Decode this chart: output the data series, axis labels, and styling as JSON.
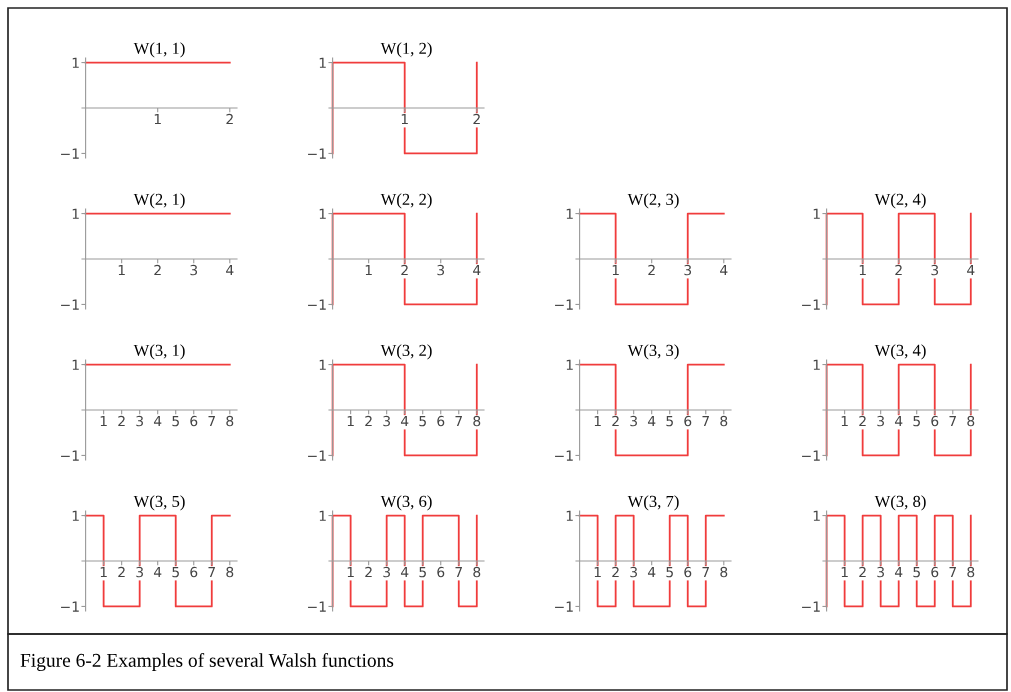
{
  "chart_data": [
    {
      "type": "line",
      "title": "W(1, 1)",
      "x": [
        0,
        2
      ],
      "values": [
        1,
        1
      ],
      "color": "#f03c3c",
      "xlim": [
        -0.05,
        2.1
      ],
      "xticks": [
        1,
        2
      ],
      "ylim": [
        -1.1,
        1.1
      ],
      "yticks": [
        -1,
        1
      ],
      "annotations": [
        "Figure 6-2 Examples of several Walsh functions"
      ]
    },
    {
      "type": "line",
      "title": "W(1, 2)",
      "x": [
        0,
        0,
        1,
        1,
        2,
        2
      ],
      "values": [
        -1,
        1,
        1,
        -1,
        -1,
        1
      ],
      "color": "#f03c3c",
      "xlim": [
        -0.05,
        2.1
      ],
      "xticks": [
        1,
        2
      ],
      "ylim": [
        -1.1,
        1.1
      ],
      "yticks": [
        -1,
        1
      ]
    },
    {
      "type": "line",
      "title": "W(2, 1)",
      "x": [
        0,
        4
      ],
      "values": [
        1,
        1
      ],
      "color": "#f03c3c",
      "xlim": [
        -0.1,
        4.2
      ],
      "xticks": [
        1,
        2,
        3,
        4
      ],
      "ylim": [
        -1.1,
        1.1
      ],
      "yticks": [
        -1,
        1
      ]
    },
    {
      "type": "line",
      "title": "W(2, 2)",
      "x": [
        0,
        0,
        2,
        2,
        4,
        4
      ],
      "values": [
        -1,
        1,
        1,
        -1,
        -1,
        1
      ],
      "color": "#f03c3c",
      "xlim": [
        -0.1,
        4.2
      ],
      "xticks": [
        1,
        2,
        3,
        4
      ],
      "ylim": [
        -1.1,
        1.1
      ],
      "yticks": [
        -1,
        1
      ]
    },
    {
      "type": "line",
      "title": "W(2, 3)",
      "x": [
        0,
        1,
        1,
        3,
        3,
        4
      ],
      "values": [
        1,
        1,
        -1,
        -1,
        1,
        1
      ],
      "color": "#f03c3c",
      "xlim": [
        -0.1,
        4.2
      ],
      "xticks": [
        1,
        2,
        3,
        4
      ],
      "ylim": [
        -1.1,
        1.1
      ],
      "yticks": [
        -1,
        1
      ]
    },
    {
      "type": "line",
      "title": "W(2, 4)",
      "x": [
        0,
        0,
        1,
        1,
        2,
        2,
        3,
        3,
        4,
        4
      ],
      "values": [
        -1,
        1,
        1,
        -1,
        -1,
        1,
        1,
        -1,
        -1,
        1
      ],
      "color": "#f03c3c",
      "xlim": [
        -0.1,
        4.2
      ],
      "xticks": [
        1,
        2,
        3,
        4
      ],
      "ylim": [
        -1.1,
        1.1
      ],
      "yticks": [
        -1,
        1
      ]
    },
    {
      "type": "line",
      "title": "W(3, 1)",
      "x": [
        0,
        8
      ],
      "values": [
        1,
        1
      ],
      "color": "#f03c3c",
      "xlim": [
        -0.2,
        8.4
      ],
      "xticks": [
        1,
        2,
        3,
        4,
        5,
        6,
        7,
        8
      ],
      "ylim": [
        -1.1,
        1.1
      ],
      "yticks": [
        -1,
        1
      ]
    },
    {
      "type": "line",
      "title": "W(3, 2)",
      "x": [
        0,
        0,
        4,
        4,
        8,
        8
      ],
      "values": [
        -1,
        1,
        1,
        -1,
        -1,
        1
      ],
      "color": "#f03c3c",
      "xlim": [
        -0.2,
        8.4
      ],
      "xticks": [
        1,
        2,
        3,
        4,
        5,
        6,
        7,
        8
      ],
      "ylim": [
        -1.1,
        1.1
      ],
      "yticks": [
        -1,
        1
      ]
    },
    {
      "type": "line",
      "title": "W(3, 3)",
      "x": [
        0,
        2,
        2,
        6,
        6,
        8
      ],
      "values": [
        1,
        1,
        -1,
        -1,
        1,
        1
      ],
      "color": "#f03c3c",
      "xlim": [
        -0.2,
        8.4
      ],
      "xticks": [
        1,
        2,
        3,
        4,
        5,
        6,
        7,
        8
      ],
      "ylim": [
        -1.1,
        1.1
      ],
      "yticks": [
        -1,
        1
      ]
    },
    {
      "type": "line",
      "title": "W(3, 4)",
      "x": [
        0,
        0,
        2,
        2,
        4,
        4,
        6,
        6,
        8,
        8
      ],
      "values": [
        -1,
        1,
        1,
        -1,
        -1,
        1,
        1,
        -1,
        -1,
        1
      ],
      "color": "#f03c3c",
      "xlim": [
        -0.2,
        8.4
      ],
      "xticks": [
        1,
        2,
        3,
        4,
        5,
        6,
        7,
        8
      ],
      "ylim": [
        -1.1,
        1.1
      ],
      "yticks": [
        -1,
        1
      ]
    },
    {
      "type": "line",
      "title": "W(3, 5)",
      "x": [
        0,
        1,
        1,
        3,
        3,
        5,
        5,
        7,
        7,
        8
      ],
      "values": [
        1,
        1,
        -1,
        -1,
        1,
        1,
        -1,
        -1,
        1,
        1
      ],
      "color": "#f03c3c",
      "xlim": [
        -0.2,
        8.4
      ],
      "xticks": [
        1,
        2,
        3,
        4,
        5,
        6,
        7,
        8
      ],
      "ylim": [
        -1.1,
        1.1
      ],
      "yticks": [
        -1,
        1
      ]
    },
    {
      "type": "line",
      "title": "W(3, 6)",
      "x": [
        0,
        0,
        1,
        1,
        3,
        3,
        4,
        4,
        5,
        5,
        7,
        7,
        8,
        8
      ],
      "values": [
        -1,
        1,
        1,
        -1,
        -1,
        1,
        1,
        -1,
        -1,
        1,
        1,
        -1,
        -1,
        1
      ],
      "color": "#f03c3c",
      "xlim": [
        -0.2,
        8.4
      ],
      "xticks": [
        1,
        2,
        3,
        4,
        5,
        6,
        7,
        8
      ],
      "ylim": [
        -1.1,
        1.1
      ],
      "yticks": [
        -1,
        1
      ]
    },
    {
      "type": "line",
      "title": "W(3, 7)",
      "x": [
        0,
        1,
        1,
        2,
        2,
        3,
        3,
        5,
        5,
        6,
        6,
        7,
        7,
        8
      ],
      "values": [
        1,
        1,
        -1,
        -1,
        1,
        1,
        -1,
        -1,
        1,
        1,
        -1,
        -1,
        1,
        1
      ],
      "color": "#f03c3c",
      "xlim": [
        -0.2,
        8.4
      ],
      "xticks": [
        1,
        2,
        3,
        4,
        5,
        6,
        7,
        8
      ],
      "ylim": [
        -1.1,
        1.1
      ],
      "yticks": [
        -1,
        1
      ]
    },
    {
      "type": "line",
      "title": "W(3, 8)",
      "x": [
        0,
        0,
        1,
        1,
        2,
        2,
        3,
        3,
        4,
        4,
        5,
        5,
        6,
        6,
        7,
        7,
        8,
        8
      ],
      "values": [
        -1,
        1,
        1,
        -1,
        -1,
        1,
        1,
        -1,
        -1,
        1,
        1,
        -1,
        -1,
        1,
        1,
        -1,
        -1,
        1
      ],
      "color": "#f03c3c",
      "xlim": [
        -0.2,
        8.4
      ],
      "xticks": [
        1,
        2,
        3,
        4,
        5,
        6,
        7,
        8
      ],
      "ylim": [
        -1.1,
        1.1
      ],
      "yticks": [
        -1,
        1
      ]
    }
  ]
}
